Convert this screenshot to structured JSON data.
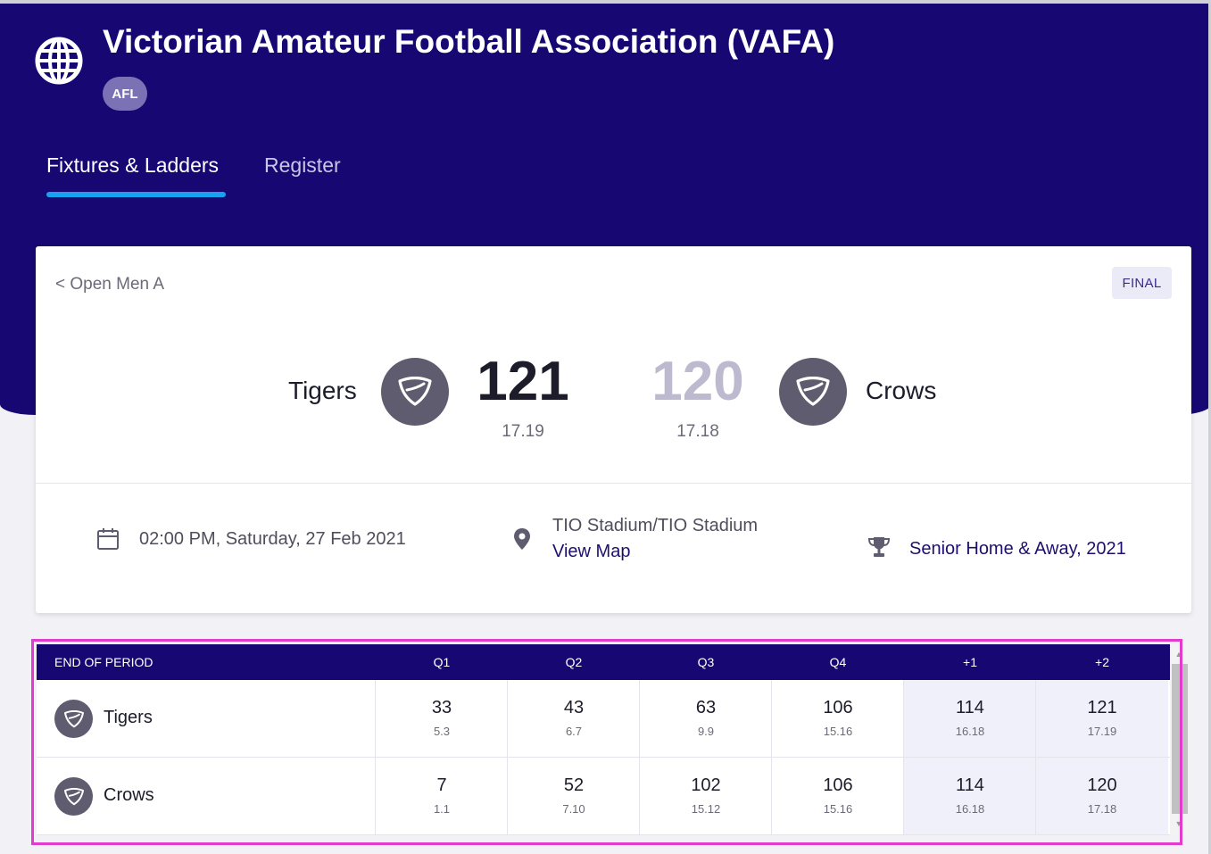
{
  "header": {
    "org_title": "Victorian Amateur Football Association (VAFA)",
    "sport_badge": "AFL",
    "icon": "globe-icon"
  },
  "tabs": [
    {
      "label": "Fixtures & Ladders",
      "active": true
    },
    {
      "label": "Register",
      "active": false
    }
  ],
  "match": {
    "back_link": "< Open Men A",
    "status": "FINAL",
    "home": {
      "name": "Tigers",
      "score": "121",
      "breakdown": "17.19",
      "icon": "shield-icon"
    },
    "away": {
      "name": "Crows",
      "score": "120",
      "breakdown": "17.18",
      "icon": "shield-icon"
    },
    "datetime": "02:00 PM, Saturday, 27 Feb 2021",
    "venue": "TIO Stadium/TIO Stadium",
    "view_map": "View Map",
    "competition": "Senior Home & Away, 2021"
  },
  "period_table": {
    "header_label": "END OF PERIOD",
    "columns": [
      "Q1",
      "Q2",
      "Q3",
      "Q4",
      "+1",
      "+2"
    ],
    "rows": [
      {
        "team": "Tigers",
        "cells": [
          {
            "score": "33",
            "sub": "5.3"
          },
          {
            "score": "43",
            "sub": "6.7"
          },
          {
            "score": "63",
            "sub": "9.9"
          },
          {
            "score": "106",
            "sub": "15.16"
          },
          {
            "score": "114",
            "sub": "16.18"
          },
          {
            "score": "121",
            "sub": "17.19"
          }
        ]
      },
      {
        "team": "Crows",
        "cells": [
          {
            "score": "7",
            "sub": "1.1"
          },
          {
            "score": "52",
            "sub": "7.10"
          },
          {
            "score": "102",
            "sub": "15.12"
          },
          {
            "score": "106",
            "sub": "15.16"
          },
          {
            "score": "114",
            "sub": "16.18"
          },
          {
            "score": "120",
            "sub": "17.18"
          }
        ]
      }
    ]
  },
  "colors": {
    "header_bg": "#170772",
    "accent_underline": "#1aa0f0",
    "highlight_border": "#e23ccf",
    "winning_score": "#1c1c2a",
    "losing_score": "#bdbad0"
  }
}
